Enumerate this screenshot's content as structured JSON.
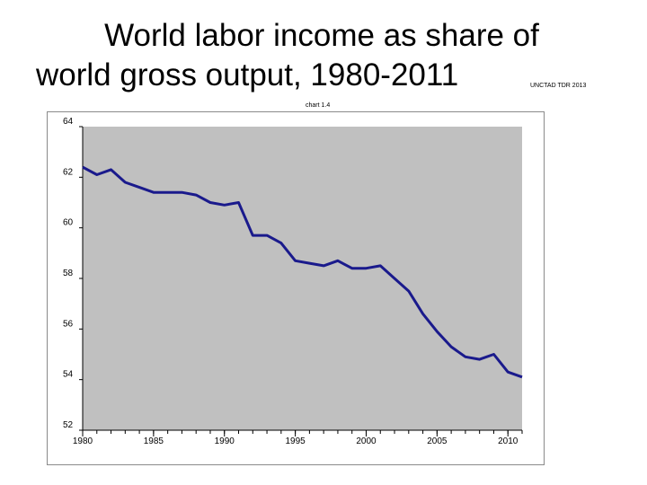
{
  "title_line1": "World labor income as share of",
  "title_line2": "world gross output, 1980-2011",
  "source": "UNCTAD TDR 2013",
  "note": "chart 1.4",
  "colors": {
    "plot_bg": "#c0c0c0",
    "line": "#1a1a8c",
    "axis": "#000000"
  },
  "chart_data": {
    "type": "line",
    "title": "World labor income as share of world gross output, 1980-2011",
    "xlabel": "",
    "ylabel": "",
    "xlim": [
      1980,
      2011
    ],
    "ylim": [
      52,
      64
    ],
    "x_ticks": [
      1980,
      1985,
      1990,
      1995,
      2000,
      2005,
      2010
    ],
    "y_ticks": [
      52,
      54,
      56,
      58,
      60,
      62,
      64
    ],
    "grid": false,
    "series": [
      {
        "x": [
          1980,
          1981,
          1982,
          1983,
          1984,
          1985,
          1986,
          1987,
          1988,
          1989,
          1990,
          1991,
          1992,
          1993,
          1994,
          1995,
          1996,
          1997,
          1998,
          1999,
          2000,
          2001,
          2002,
          2003,
          2004,
          2005,
          2006,
          2007,
          2008,
          2009,
          2010,
          2011
        ],
        "values": [
          62.4,
          62.1,
          62.3,
          61.8,
          61.6,
          61.4,
          61.4,
          61.4,
          61.3,
          61.0,
          60.9,
          61.0,
          59.7,
          59.7,
          59.4,
          58.7,
          58.6,
          58.5,
          58.7,
          58.4,
          58.4,
          58.5,
          58.0,
          57.5,
          56.6,
          55.9,
          55.3,
          54.9,
          54.8,
          55.0,
          54.3,
          54.1
        ]
      }
    ]
  }
}
